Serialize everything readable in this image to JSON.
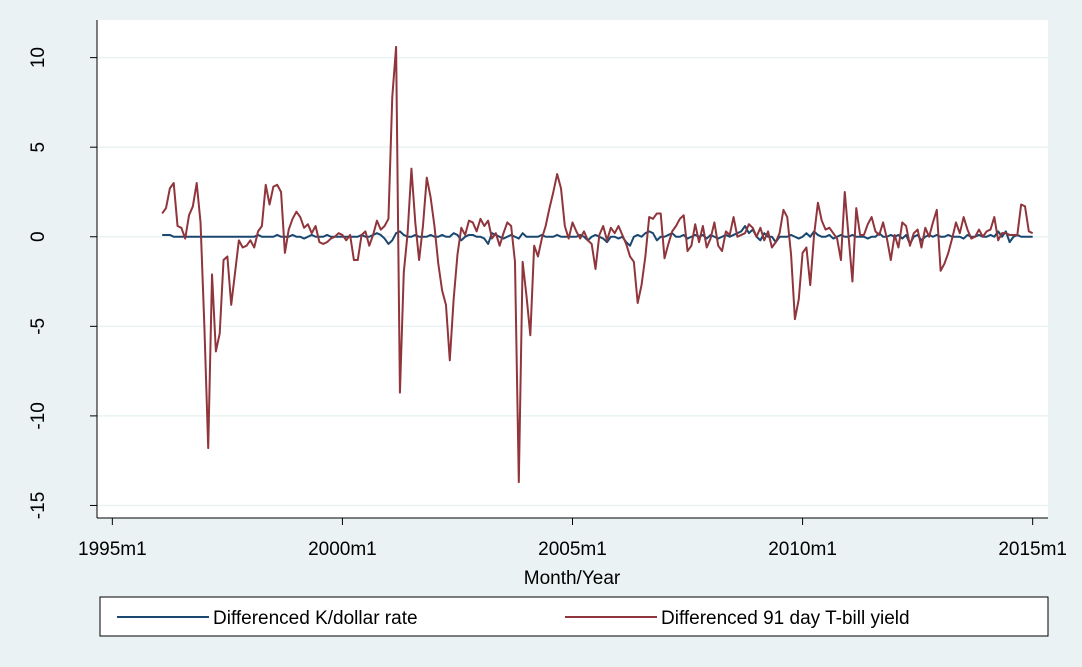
{
  "chart_data": {
    "type": "line",
    "xlabel": "Month/Year",
    "x": [
      433,
      434,
      435,
      436,
      437,
      438,
      439,
      440,
      441,
      442,
      443,
      444,
      445,
      446,
      447,
      448,
      449,
      450,
      451,
      452,
      453,
      454,
      455,
      456,
      457,
      458,
      459,
      460,
      461,
      462,
      463,
      464,
      465,
      466,
      467,
      468,
      469,
      470,
      471,
      472,
      473,
      474,
      475,
      476,
      477,
      478,
      479,
      480,
      481,
      482,
      483,
      484,
      485,
      486,
      487,
      488,
      489,
      490,
      491,
      492,
      493,
      494,
      495,
      496,
      497,
      498,
      499,
      500,
      501,
      502,
      503,
      504,
      505,
      506,
      507,
      508,
      509,
      510,
      511,
      512,
      513,
      514,
      515,
      516,
      517,
      518,
      519,
      520,
      521,
      522,
      523,
      524,
      525,
      526,
      527,
      528,
      529,
      530,
      531,
      532,
      533,
      534,
      535,
      536,
      537,
      538,
      539,
      540,
      541,
      542,
      543,
      544,
      545,
      546,
      547,
      548,
      549,
      550,
      551,
      552,
      553,
      554,
      555,
      556,
      557,
      558,
      559,
      560,
      561,
      562,
      563,
      564,
      565,
      566,
      567,
      568,
      569,
      570,
      571,
      572,
      573,
      574,
      575,
      576,
      577,
      578,
      579,
      580,
      581,
      582,
      583,
      584,
      585,
      586,
      587,
      588,
      589,
      590,
      591,
      592,
      593,
      594,
      595,
      596,
      597,
      598,
      599,
      600,
      601,
      602,
      603,
      604,
      605,
      606,
      607,
      608,
      609,
      610,
      611,
      612,
      613,
      614,
      615,
      616,
      617,
      618,
      619,
      620,
      621,
      622,
      623,
      624,
      625,
      626,
      627,
      628,
      629,
      630,
      631,
      632,
      633,
      634,
      635,
      636,
      637,
      638,
      639,
      640,
      641,
      642,
      643,
      644,
      645,
      646,
      647,
      648,
      649,
      650,
      651,
      652,
      653,
      654,
      655,
      656,
      657,
      658,
      659,
      660
    ],
    "series": [
      {
        "name": "Differenced K/dollar rate",
        "color": "#1a476f",
        "values": [
          0.1,
          0.1,
          0.1,
          0,
          0,
          0,
          0,
          0,
          0,
          0,
          0,
          0,
          0,
          0,
          0,
          0,
          0,
          0,
          0,
          0,
          0,
          0,
          0,
          0,
          0,
          0.1,
          0,
          0,
          0,
          0,
          0.1,
          0,
          0,
          0,
          0.1,
          0,
          0,
          -0.1,
          0,
          0.1,
          0,
          0,
          0,
          0.1,
          0,
          0,
          0,
          0,
          0,
          0,
          0,
          0,
          0.1,
          0,
          0,
          0.1,
          0.2,
          0.1,
          -0.1,
          -0.4,
          -0.2,
          0.2,
          0.3,
          0.1,
          0,
          0,
          0.1,
          0,
          0,
          0,
          0.1,
          0,
          0,
          0.1,
          0,
          0,
          0.2,
          0.1,
          -0.2,
          0,
          0.1,
          0.1,
          0,
          0,
          -0.1,
          -0.4,
          0.2,
          0.1,
          0,
          -0.1,
          0,
          0.1,
          0,
          -0.1,
          0.2,
          0,
          0,
          0,
          0,
          0.1,
          0,
          0,
          0,
          0.1,
          0,
          0,
          0,
          0,
          0,
          0.1,
          0,
          -0.2,
          0,
          0.1,
          0,
          -0.1,
          -0.3,
          0,
          0,
          -0.1,
          0,
          -0.3,
          -0.5,
          0,
          0.1,
          0,
          0.2,
          0.3,
          0.2,
          -0.2,
          0,
          0,
          0.1,
          0.2,
          0,
          0,
          0.1,
          -0.1,
          0,
          0.1,
          0,
          0.1,
          -0.1,
          0.1,
          0,
          -0.1,
          0,
          0.1,
          0,
          0.1,
          0.2,
          0.3,
          0.6,
          0.2,
          0.4,
          0,
          -0.2,
          0.2,
          0,
          0,
          -0.3,
          0,
          0,
          0,
          0.1,
          0,
          -0.1,
          0,
          0.2,
          0,
          0.3,
          0.1,
          0,
          0,
          0.1,
          -0.1,
          0,
          0.1,
          0,
          0,
          0.1,
          0,
          0,
          0,
          -0.1,
          0,
          0,
          0.2,
          0,
          0,
          0.1,
          0,
          0.1,
          -0.1,
          0.1,
          -0.4,
          0,
          0.1,
          -0.2,
          0,
          0.1,
          0,
          0.1,
          0,
          0,
          0.1,
          0,
          0,
          0,
          -0.1,
          0.1,
          0,
          0,
          0.1,
          0,
          0,
          0.1,
          0,
          0.3,
          0,
          0.3,
          -0.3,
          0,
          0.1,
          0,
          0,
          0,
          0
        ]
      },
      {
        "name": "Differenced 91 day T-bill yield",
        "color": "#90353b",
        "values": [
          1.3,
          1.6,
          2.7,
          3.0,
          0.6,
          0.5,
          -0.1,
          1.2,
          1.7,
          3.0,
          0.8,
          -5,
          -11.8,
          -2.1,
          -6.4,
          -5.4,
          -1.3,
          -1.1,
          -3.8,
          -2.0,
          -0.2,
          -0.6,
          -0.5,
          -0.2,
          -0.6,
          0.3,
          0.6,
          2.9,
          1.8,
          2.8,
          2.9,
          2.5,
          -0.9,
          0.4,
          1.0,
          1.4,
          1.1,
          0.5,
          0.7,
          0.2,
          0.6,
          -0.3,
          -0.4,
          -0.3,
          -0.1,
          0,
          0.2,
          0.1,
          -0.2,
          0.1,
          -1.3,
          -1.3,
          0.1,
          0.3,
          -0.5,
          0.1,
          0.9,
          0.4,
          0.6,
          1.0,
          7.8,
          10.6,
          -8.7,
          -2.0,
          0.2,
          3.8,
          0.8,
          -1.3,
          0.6,
          3.3,
          2.2,
          0.6,
          -1.5,
          -3,
          -3.8,
          -6.9,
          -3.5,
          -1.0,
          0.5,
          0.1,
          0.9,
          0.8,
          0.3,
          1.0,
          0.6,
          0.9,
          -0.1,
          0.2,
          -0.5,
          0.2,
          0.8,
          0.6,
          -1.4,
          -13.7,
          -1.4,
          -3.3,
          -5.5,
          -0.5,
          -1.1,
          -0.1,
          0.6,
          1.6,
          2.5,
          3.5,
          2.7,
          0.6,
          -0.1,
          0.8,
          0.3,
          -0.1,
          0.3,
          -0.2,
          -0.4,
          -1.8,
          0.1,
          0.6,
          -0.2,
          0.5,
          0.2,
          0.6,
          0.1,
          -0.4,
          -1.1,
          -1.4,
          -3.7,
          -2.7,
          -1.1,
          1.1,
          1.0,
          1.3,
          1.3,
          -1.2,
          -0.4,
          0.3,
          0.6,
          1.0,
          1.2,
          -0.8,
          -0.5,
          0.7,
          -0.3,
          0.6,
          -0.6,
          -0.1,
          0.8,
          -0.5,
          -0.8,
          0.3,
          0.1,
          1.1,
          0.0,
          0.1,
          0.2,
          0.7,
          0.5,
          0.0,
          0.5,
          -0.2,
          0.3,
          -0.6,
          -0.3,
          0.2,
          1.5,
          1.1,
          -1.0,
          -4.6,
          -3.5,
          -0.9,
          -0.6,
          -2.7,
          0.1,
          1.9,
          0.9,
          0.4,
          0.5,
          0.2,
          -0.1,
          -1.3,
          2.5,
          0.0,
          -2.5,
          1.6,
          0.1,
          0.1,
          0.7,
          1.1,
          0.3,
          0.1,
          0.8,
          -0.1,
          -1.3,
          0.1,
          -0.6,
          0.8,
          0.6,
          -0.5,
          0.2,
          0.4,
          -0.6,
          0.5,
          0.0,
          0.8,
          1.5,
          -1.9,
          -1.5,
          -0.9,
          -0.1,
          0.8,
          0.2,
          1.1,
          0.4,
          -0.1,
          0.0,
          0.4,
          0.0,
          0.3,
          0.4,
          1.1,
          -0.2,
          0.2,
          0.2,
          0.1,
          0.1,
          0.1,
          1.8,
          1.7,
          0.3,
          0.2
        ]
      }
    ],
    "xlim": [
      416,
      664
    ],
    "xticks": [
      {
        "value": 420,
        "label": "1995m1"
      },
      {
        "value": 480,
        "label": "2000m1"
      },
      {
        "value": 540,
        "label": "2005m1"
      },
      {
        "value": 600,
        "label": "2010m1"
      },
      {
        "value": 660,
        "label": "2015m1"
      }
    ],
    "ylim": [
      -15.7,
      12.1
    ],
    "yticks": [
      -15,
      -10,
      -5,
      0,
      5,
      10
    ],
    "grid": true,
    "legend": "bottom"
  }
}
